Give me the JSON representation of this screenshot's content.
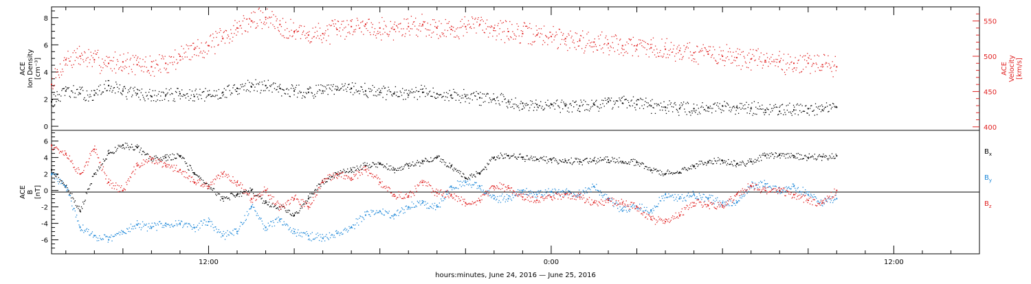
{
  "footer_label": "hours:minutes, June 24, 2016 — June 25, 2016",
  "chart_data": [
    {
      "type": "scatter",
      "panel": "top",
      "title": "",
      "xlabel": "",
      "x_unit": "hours since 2016-06-24 00:00",
      "x_range": [
        6.5,
        39
      ],
      "x_ticks": [
        12,
        24,
        36
      ],
      "x_tick_labels": [
        "12:00",
        "0:00",
        "12:00"
      ],
      "ylabel_left": [
        "ACE",
        "Ion Density",
        "[cm⁻³]"
      ],
      "ylabel_right": [
        "ACE",
        "Velocity",
        "[km/s]"
      ],
      "y_left_range": [
        -0.3,
        8.8
      ],
      "y_left_ticks": [
        0,
        2,
        4,
        6,
        8
      ],
      "y_right_range": [
        395,
        570
      ],
      "y_right_ticks": [
        400,
        450,
        500,
        550
      ],
      "series": [
        {
          "name": "Ion Density",
          "color": "#000000",
          "axis": "left",
          "x": [
            6.5,
            7,
            7.5,
            8,
            8.5,
            9,
            9.5,
            10,
            10.5,
            11,
            11.5,
            12,
            12.5,
            13,
            13.5,
            14,
            14.5,
            15,
            15.5,
            16,
            16.5,
            17,
            17.5,
            18,
            18.5,
            19,
            19.5,
            20,
            20.5,
            21,
            21.5,
            22,
            22.5,
            23,
            23.5,
            24,
            24.5,
            25,
            25.5,
            26,
            26.5,
            27,
            27.5,
            28,
            28.5,
            29,
            29.5,
            30,
            30.5,
            31,
            31.5,
            32,
            32.5,
            33,
            33.5,
            34
          ],
          "y": [
            1.8,
            2.6,
            2.4,
            2.3,
            3.0,
            2.6,
            2.4,
            2.2,
            2.3,
            2.4,
            2.2,
            2.3,
            2.5,
            2.8,
            2.9,
            3.0,
            2.8,
            2.6,
            2.5,
            2.6,
            2.7,
            2.8,
            2.6,
            2.5,
            2.4,
            2.3,
            2.5,
            2.4,
            2.3,
            2.2,
            2.1,
            2.0,
            1.8,
            1.7,
            1.6,
            1.6,
            1.5,
            1.5,
            1.6,
            1.8,
            1.7,
            1.6,
            1.5,
            1.4,
            1.3,
            1.3,
            1.4,
            1.5,
            1.4,
            1.3,
            1.2,
            1.1,
            1.2,
            1.3,
            1.2,
            1.4
          ]
        },
        {
          "name": "Velocity",
          "color": "#e02020",
          "axis": "right",
          "x": [
            6.5,
            7,
            7.5,
            8,
            8.5,
            9,
            9.5,
            10,
            10.5,
            11,
            11.5,
            12,
            12.5,
            13,
            13.5,
            14,
            14.5,
            15,
            15.5,
            16,
            16.5,
            17,
            17.5,
            18,
            18.5,
            19,
            19.5,
            20,
            20.5,
            21,
            21.5,
            22,
            22.5,
            23,
            23.5,
            24,
            24.5,
            25,
            25.5,
            26,
            26.5,
            27,
            27.5,
            28,
            28.5,
            29,
            29.5,
            30,
            30.5,
            31,
            31.5,
            32,
            32.5,
            33,
            33.5,
            34
          ],
          "y": [
            460,
            495,
            500,
            495,
            490,
            492,
            488,
            485,
            490,
            500,
            510,
            515,
            525,
            540,
            550,
            555,
            545,
            535,
            530,
            532,
            538,
            542,
            545,
            540,
            538,
            542,
            545,
            540,
            538,
            542,
            545,
            540,
            535,
            532,
            530,
            528,
            525,
            522,
            520,
            518,
            515,
            515,
            512,
            510,
            508,
            505,
            503,
            500,
            498,
            496,
            494,
            492,
            490,
            490,
            488,
            485
          ]
        }
      ]
    },
    {
      "type": "scatter",
      "panel": "bottom",
      "title": "",
      "xlabel": "hours:minutes, June 24, 2016 — June 25, 2016",
      "x_unit": "hours since 2016-06-24 00:00",
      "x_range": [
        6.5,
        39
      ],
      "x_ticks": [
        12,
        24,
        36
      ],
      "x_tick_labels": [
        "12:00",
        "0:00",
        "12:00"
      ],
      "ylabel": [
        "ACE",
        "B",
        "[nT]"
      ],
      "y_range": [
        -7.7,
        7.3
      ],
      "y_ticks": [
        -6,
        -4,
        -2,
        0,
        2,
        4,
        6
      ],
      "zero_line": true,
      "series": [
        {
          "name": "Bx",
          "label_main": "B",
          "label_sub": "x",
          "color": "#000000",
          "x": [
            6.5,
            7,
            7.5,
            8,
            8.5,
            9,
            9.5,
            10,
            10.5,
            11,
            11.5,
            12,
            12.5,
            13,
            13.5,
            14,
            14.5,
            15,
            15.5,
            16,
            16.5,
            17,
            17.5,
            18,
            18.5,
            19,
            19.5,
            20,
            20.5,
            21,
            21.5,
            22,
            22.5,
            23,
            23.5,
            24,
            24.5,
            25,
            25.5,
            26,
            26.5,
            27,
            27.5,
            28,
            28.5,
            29,
            29.5,
            30,
            30.5,
            31,
            31.5,
            32,
            32.5,
            33,
            33.5,
            34
          ],
          "y": [
            2.5,
            0.5,
            -2.5,
            2.0,
            4.5,
            5.5,
            5.2,
            3.8,
            4.0,
            4.2,
            2.0,
            0.5,
            -1.0,
            -0.5,
            0.0,
            -1.5,
            -2.0,
            -3.0,
            -1.0,
            1.0,
            2.0,
            2.5,
            3.0,
            3.2,
            2.5,
            3.0,
            3.5,
            4.0,
            3.0,
            1.5,
            2.0,
            4.0,
            4.2,
            4.0,
            3.8,
            3.7,
            3.6,
            3.5,
            3.6,
            3.7,
            3.5,
            3.4,
            2.5,
            2.0,
            2.2,
            3.0,
            3.5,
            3.6,
            3.2,
            3.5,
            4.2,
            4.3,
            4.2,
            4.0,
            4.1,
            4.2
          ]
        },
        {
          "name": "By",
          "label_main": "B",
          "label_sub": "y",
          "color": "#1a86d8",
          "x": [
            6.5,
            7,
            7.5,
            8,
            8.5,
            9,
            9.5,
            10,
            10.5,
            11,
            11.5,
            12,
            12.5,
            13,
            13.5,
            14,
            14.5,
            15,
            15.5,
            16,
            16.5,
            17,
            17.5,
            18,
            18.5,
            19,
            19.5,
            20,
            20.5,
            21,
            21.5,
            22,
            22.5,
            23,
            23.5,
            24,
            24.5,
            25,
            25.5,
            26,
            26.5,
            27,
            27.5,
            28,
            28.5,
            29,
            29.5,
            30,
            30.5,
            31,
            31.5,
            32,
            32.5,
            33,
            33.5,
            34
          ],
          "y": [
            2.0,
            0.5,
            -4.5,
            -5.5,
            -6.0,
            -5.0,
            -4.2,
            -4.5,
            -4.0,
            -4.0,
            -4.5,
            -3.8,
            -5.5,
            -5.0,
            -2.0,
            -4.5,
            -3.5,
            -5.0,
            -5.5,
            -5.8,
            -5.2,
            -4.5,
            -3.0,
            -2.5,
            -3.0,
            -2.0,
            -1.5,
            -2.0,
            0.5,
            1.0,
            0.5,
            -1.0,
            -1.0,
            0.0,
            -0.5,
            -0.2,
            -0.3,
            -0.5,
            0.5,
            -1.0,
            -2.5,
            -2.0,
            -2.5,
            -0.5,
            -1.0,
            -0.5,
            -1.0,
            -1.5,
            -1.5,
            0.5,
            0.8,
            0.0,
            0.5,
            -0.5,
            -1.5,
            -1.0
          ]
        },
        {
          "name": "Bz",
          "label_main": "B",
          "label_sub": "z",
          "color": "#e02020",
          "x": [
            6.5,
            7,
            7.5,
            8,
            8.5,
            9,
            9.5,
            10,
            10.5,
            11,
            11.5,
            12,
            12.5,
            13,
            13.5,
            14,
            14.5,
            15,
            15.5,
            16,
            16.5,
            17,
            17.5,
            18,
            18.5,
            19,
            19.5,
            20,
            20.5,
            21,
            21.5,
            22,
            22.5,
            23,
            23.5,
            24,
            24.5,
            25,
            25.5,
            26,
            26.5,
            27,
            27.5,
            28,
            28.5,
            29,
            29.5,
            30,
            30.5,
            31,
            31.5,
            32,
            32.5,
            33,
            33.5,
            34
          ],
          "y": [
            5.5,
            4.5,
            2.0,
            5.0,
            1.0,
            0.0,
            3.0,
            3.8,
            3.0,
            2.5,
            1.0,
            0.5,
            2.0,
            1.0,
            -1.0,
            0.0,
            -2.0,
            -1.0,
            -2.0,
            1.0,
            2.0,
            1.5,
            2.5,
            1.0,
            -0.5,
            -0.8,
            1.0,
            -0.3,
            -0.5,
            -1.5,
            -1.2,
            0.5,
            0.3,
            -0.8,
            -1.2,
            -0.8,
            -0.5,
            -0.8,
            -1.5,
            -1.2,
            -1.5,
            -2.0,
            -3.5,
            -3.8,
            -3.0,
            -1.5,
            -1.8,
            -2.0,
            -0.5,
            0.5,
            0.0,
            0.0,
            -0.5,
            -1.2,
            -1.5,
            0.0
          ]
        }
      ]
    }
  ]
}
